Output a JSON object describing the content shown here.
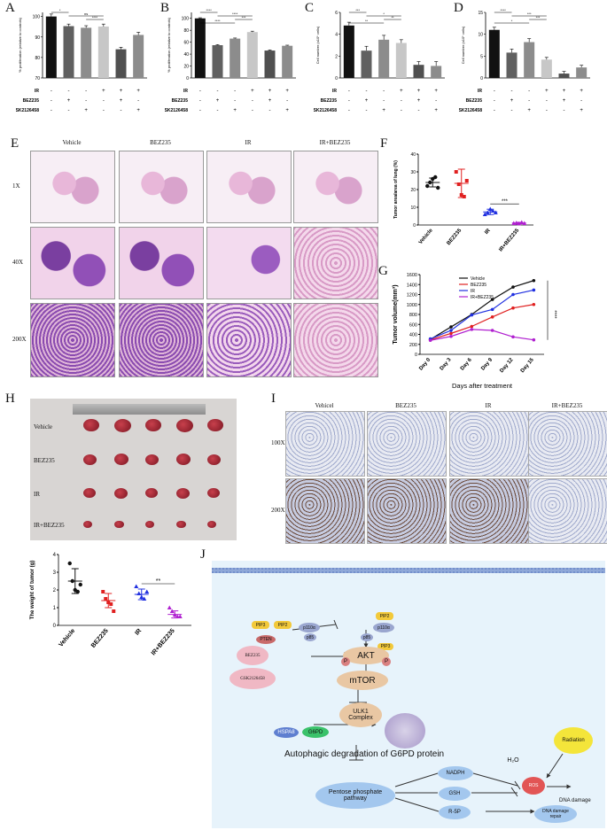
{
  "panels": {
    "A": "A",
    "B": "B",
    "C": "C",
    "D": "D",
    "E": "E",
    "F": "F",
    "G": "G",
    "H": "H",
    "I": "I",
    "J": "J"
  },
  "row_labels_abcd": {
    "ir": "IR",
    "bez": "BEZ235",
    "gsk": "GSK2126458"
  },
  "treatments_abcd": {
    "ir": [
      "-",
      "-",
      "-",
      "+",
      "+",
      "+"
    ],
    "bez": [
      "-",
      "+",
      "-",
      "-",
      "+",
      "-"
    ],
    "gsk": [
      "-",
      "-",
      "+",
      "-",
      "-",
      "+"
    ]
  },
  "colors": {
    "black": "#111111",
    "dgray": "#606060",
    "mgray": "#8c8c8c",
    "lgray": "#c7c7c7",
    "veh": "#111111",
    "bez": "#e02020",
    "ir": "#2030e0",
    "comb": "#b020d0",
    "pathway_bg": "#e7f3fb"
  },
  "chart_data": [
    {
      "id": "A",
      "type": "bar",
      "ylabel": "% proliferation (relative to controls)",
      "ylim": [
        70,
        102
      ],
      "yticks": [
        "70",
        "80",
        "90",
        "100"
      ],
      "values": [
        100,
        95.3,
        94.5,
        95.1,
        84,
        91
      ],
      "errors": [
        1.2,
        1,
        1,
        1.2,
        1,
        1.3
      ],
      "sig": [
        "*",
        "ns",
        "****"
      ]
    },
    {
      "id": "B",
      "type": "bar",
      "ylabel": "% proliferation (relative to controls)",
      "ylim": [
        0,
        110
      ],
      "yticks": [
        "0",
        "20",
        "40",
        "60",
        "80",
        "100"
      ],
      "values": [
        100,
        55,
        66,
        77,
        46,
        54
      ],
      "errors": [
        1,
        1,
        1,
        1.5,
        1,
        1
      ],
      "sig": [
        "****",
        "****",
        "***",
        "****"
      ]
    },
    {
      "id": "C",
      "type": "bar",
      "ylabel": "Cell number (x10⁵ cells)",
      "ylim": [
        0,
        6
      ],
      "yticks": [
        "0",
        "2",
        "4",
        "6"
      ],
      "values": [
        4.8,
        2.5,
        3.5,
        3.2,
        1.2,
        1.1
      ],
      "errors": [
        0.3,
        0.4,
        0.4,
        0.3,
        0.3,
        0.4
      ],
      "sig": [
        "***",
        "*",
        "**",
        "**"
      ]
    },
    {
      "id": "D",
      "type": "bar",
      "ylabel": "Cell number (x10⁵ cells)",
      "ylim": [
        0,
        15
      ],
      "yticks": [
        "0",
        "5",
        "10",
        "15"
      ],
      "values": [
        11,
        5.8,
        8.2,
        4.2,
        1,
        2.4
      ],
      "errors": [
        0.6,
        0.8,
        0.8,
        0.5,
        0.5,
        0.5
      ],
      "sig": [
        "****",
        "***",
        "***",
        "*"
      ]
    },
    {
      "id": "F",
      "type": "scatter",
      "ylabel": "Tumor area/area of lung (%)",
      "ylim": [
        0,
        40
      ],
      "yticks": [
        "0",
        "10",
        "20",
        "30",
        "40"
      ],
      "categories": [
        "Vehicle",
        "BEZ235",
        "IR",
        "IR+BEZ235"
      ],
      "points": [
        [
          22,
          24,
          26,
          27,
          21
        ],
        [
          30,
          23,
          17,
          16,
          25
        ],
        [
          6,
          7,
          9,
          8,
          7
        ],
        [
          1,
          1.2,
          0.8,
          1.5,
          1
        ]
      ],
      "means": [
        24,
        23.5,
        7.4,
        1.1
      ],
      "sds": [
        2.5,
        8,
        1.5,
        0.4
      ],
      "sig": [
        "***"
      ]
    },
    {
      "id": "G",
      "type": "line",
      "ylabel": "Tumor volume(mm³)",
      "xlabel": "Days after treatment",
      "ylim": [
        0,
        1600
      ],
      "yticks": [
        "0",
        "200",
        "400",
        "600",
        "800",
        "1000",
        "1200",
        "1400",
        "1600"
      ],
      "categories": [
        "Day 0",
        "Day 3",
        "Day 6",
        "Day 9",
        "Day 12",
        "Day 15"
      ],
      "series": [
        {
          "name": "Vehicle",
          "values": [
            300,
            550,
            800,
            1100,
            1350,
            1480
          ]
        },
        {
          "name": "BEZ235",
          "values": [
            290,
            420,
            560,
            750,
            930,
            1000
          ]
        },
        {
          "name": "IR",
          "values": [
            310,
            480,
            790,
            900,
            1200,
            1290
          ]
        },
        {
          "name": "IR+BEZ235",
          "values": [
            280,
            360,
            500,
            480,
            350,
            290
          ]
        }
      ],
      "sig": [
        "****"
      ]
    },
    {
      "id": "Hb",
      "type": "scatter",
      "ylabel": "The weight of tumor (g)",
      "ylim": [
        0,
        4
      ],
      "yticks": [
        "0",
        "1",
        "2",
        "3",
        "4"
      ],
      "categories": [
        "Vehicle",
        "BEZ235",
        "IR",
        "IR+BEZ235"
      ],
      "points": [
        [
          3.5,
          2.5,
          2.0,
          1.9,
          2.3
        ],
        [
          1.9,
          1.5,
          1.3,
          1.2,
          0.8
        ],
        [
          2.2,
          1.8,
          1.6,
          1.5,
          1.9
        ],
        [
          1.0,
          0.8,
          0.6,
          0.5,
          0.5
        ]
      ],
      "means": [
        2.5,
        1.4,
        1.75,
        0.62
      ],
      "sds": [
        0.7,
        0.4,
        0.3,
        0.2
      ],
      "sig": [
        "**"
      ]
    }
  ],
  "E": {
    "cols": [
      "Vehicle",
      "BEZ235",
      "IR",
      "IR+BEZ235"
    ],
    "rows": [
      "1X",
      "40X",
      "200X"
    ]
  },
  "H": {
    "rows": [
      "Vehicle",
      "BEZ235",
      "IR",
      "IR+BEZ235"
    ]
  },
  "I": {
    "cols": [
      "Vehicel",
      "BEZ235",
      "IR",
      "IR+BEZ235"
    ],
    "rows": [
      "100X",
      "200X"
    ]
  },
  "J": {
    "pip3": "PIP3",
    "pip2": "PIP2",
    "pip2b": "PIP2",
    "pip3b": "PIP3",
    "p110a": "p110α",
    "p110a2": "p110α",
    "p85": "p85",
    "p85b": "p85",
    "pten": "PTEN",
    "bez": "BEZ235",
    "gsk": "GSK2126458",
    "akt": "AKT",
    "p": "P",
    "mtor": "mTOR",
    "ulk1": "ULK1\nComplex",
    "hspa8": "HSPA8",
    "g6pd": "G6PD",
    "title": "Autophagic degradation of G6PD protein",
    "ppp": "Pentose phosphate\npathway",
    "nadph": "NADPH",
    "gsh": "GSH",
    "r5p": "R-5P",
    "h2o": "H₂O",
    "radiation": "Radiation",
    "ros": "ROS",
    "dna_damage": "DNA damage",
    "repair": "DNA damage\nrepair"
  }
}
